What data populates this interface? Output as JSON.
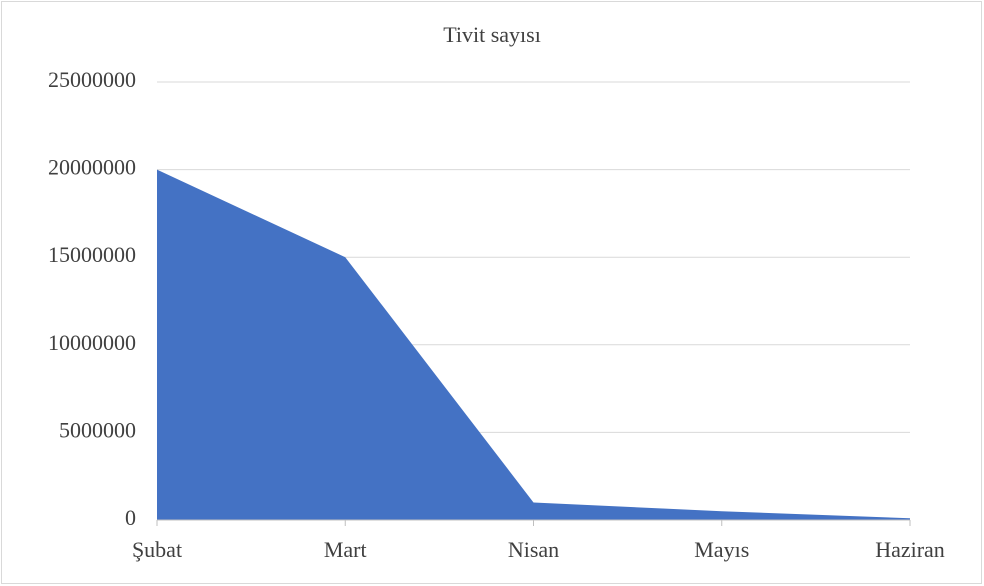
{
  "chart_data": {
    "type": "area",
    "title": "Tivit sayısı",
    "categories": [
      "Şubat",
      "Mart",
      "Nisan",
      "Mayıs",
      "Haziran"
    ],
    "values": [
      20000000,
      15000000,
      1000000,
      500000,
      100000
    ],
    "color": "#4472c4",
    "ylim": [
      0,
      25000000
    ],
    "yticks": [
      0,
      5000000,
      10000000,
      15000000,
      20000000,
      25000000
    ],
    "grid": true
  }
}
